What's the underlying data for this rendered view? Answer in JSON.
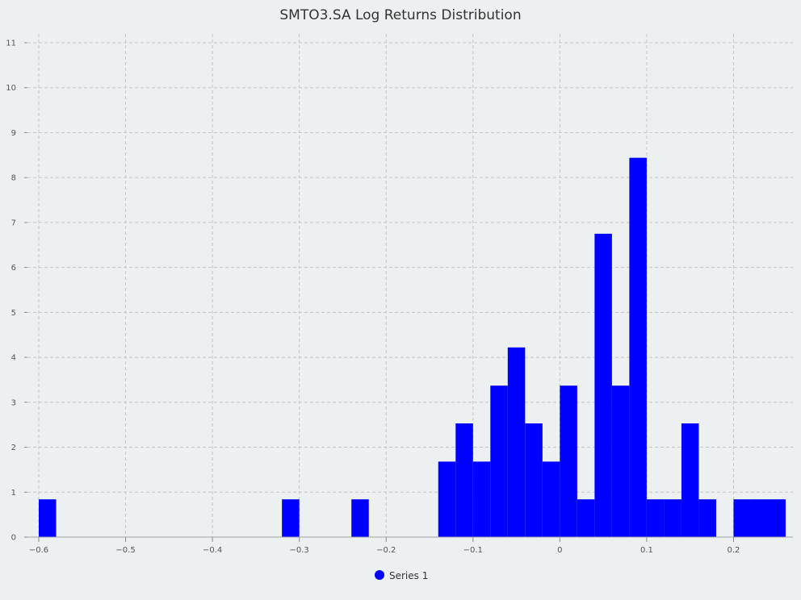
{
  "chart_data": {
    "type": "bar",
    "title": "SMTO3.SA Log Returns Distribution",
    "xlabel": "",
    "ylabel": "",
    "xlim": [
      -0.6,
      0.26
    ],
    "ylim": [
      0,
      11
    ],
    "x_ticks": [
      -0.6,
      -0.5,
      -0.4,
      -0.3,
      -0.2,
      -0.1,
      0,
      0.1,
      0.2
    ],
    "x_tick_labels": [
      "−0.6",
      "−0.5",
      "−0.4",
      "−0.3",
      "−0.2",
      "−0.1",
      "0",
      "0.1",
      "0.2"
    ],
    "y_ticks": [
      0,
      1,
      2,
      3,
      4,
      5,
      6,
      7,
      8,
      9,
      10,
      11
    ],
    "grid": true,
    "legend_position": "bottom",
    "bin_width": 0.02,
    "series": [
      {
        "name": "Series 1",
        "color": "#0000ff",
        "bins": [
          {
            "x0": -0.6,
            "x1": -0.58,
            "value": 0.84
          },
          {
            "x0": -0.32,
            "x1": -0.3,
            "value": 0.84
          },
          {
            "x0": -0.24,
            "x1": -0.22,
            "value": 0.84
          },
          {
            "x0": -0.14,
            "x1": -0.12,
            "value": 1.68
          },
          {
            "x0": -0.12,
            "x1": -0.1,
            "value": 2.53
          },
          {
            "x0": -0.1,
            "x1": -0.08,
            "value": 1.68
          },
          {
            "x0": -0.08,
            "x1": -0.06,
            "value": 3.37
          },
          {
            "x0": -0.06,
            "x1": -0.04,
            "value": 4.22
          },
          {
            "x0": -0.04,
            "x1": -0.02,
            "value": 2.53
          },
          {
            "x0": -0.02,
            "x1": 0.0,
            "value": 1.68
          },
          {
            "x0": 0.0,
            "x1": 0.02,
            "value": 3.37
          },
          {
            "x0": 0.02,
            "x1": 0.04,
            "value": 0.84
          },
          {
            "x0": 0.04,
            "x1": 0.06,
            "value": 6.75
          },
          {
            "x0": 0.06,
            "x1": 0.08,
            "value": 3.37
          },
          {
            "x0": 0.08,
            "x1": 0.1,
            "value": 8.44
          },
          {
            "x0": 0.1,
            "x1": 0.12,
            "value": 0.84
          },
          {
            "x0": 0.12,
            "x1": 0.14,
            "value": 0.84
          },
          {
            "x0": 0.14,
            "x1": 0.16,
            "value": 2.53
          },
          {
            "x0": 0.16,
            "x1": 0.18,
            "value": 0.84
          },
          {
            "x0": 0.2,
            "x1": 0.22,
            "value": 0.84
          },
          {
            "x0": 0.22,
            "x1": 0.24,
            "value": 0.84
          },
          {
            "x0": 0.24,
            "x1": 0.26,
            "value": 0.84
          }
        ]
      }
    ]
  }
}
